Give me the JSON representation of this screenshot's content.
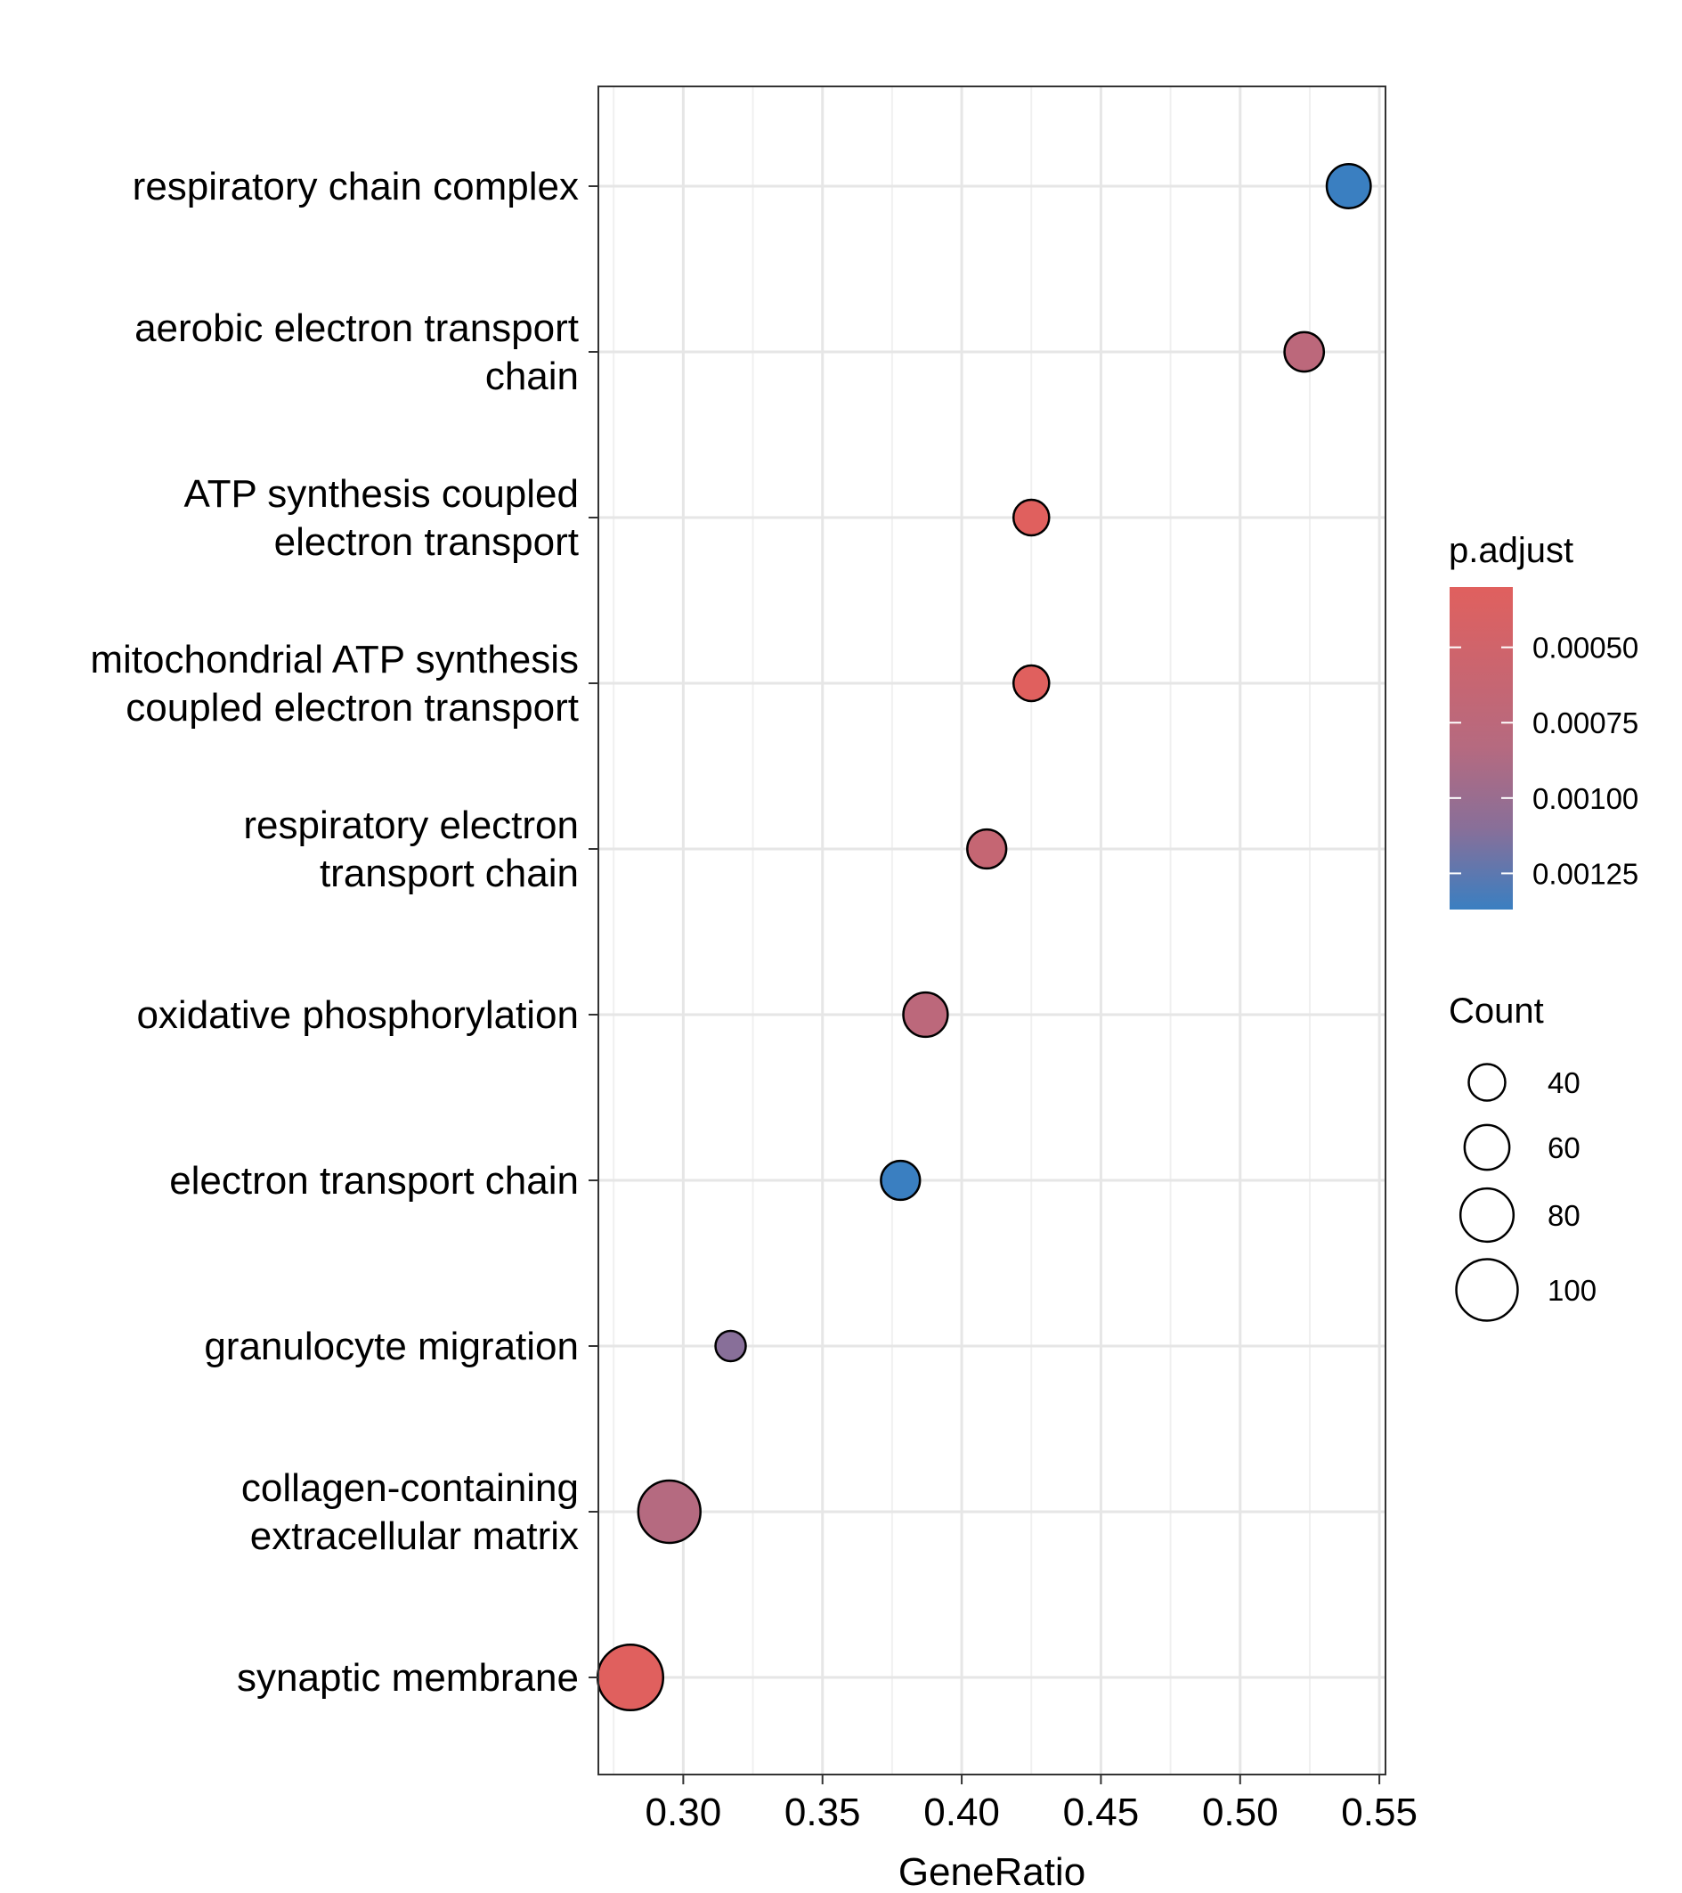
{
  "chart_data": {
    "type": "scatter",
    "title": "",
    "xlabel": "GeneRatio",
    "ylabel": "",
    "xlim": [
      0.2695,
      0.5522
    ],
    "x_ticks": [
      0.3,
      0.35,
      0.4,
      0.45,
      0.5,
      0.55
    ],
    "x_tick_labels": [
      "0.30",
      "0.35",
      "0.40",
      "0.45",
      "0.50",
      "0.55"
    ],
    "grid": true,
    "legend_position": "right",
    "categories": [
      "respiratory chain complex",
      "aerobic electron transport chain",
      "ATP synthesis coupled electron transport",
      "mitochondrial ATP synthesis coupled electron transport",
      "respiratory electron transport chain",
      "oxidative phosphorylation",
      "electron transport chain",
      "granulocyte migration",
      "collagen-containing extracellular matrix",
      "synaptic membrane"
    ],
    "category_label_lines": [
      [
        "respiratory chain complex"
      ],
      [
        "aerobic electron transport",
        "chain"
      ],
      [
        "ATP synthesis coupled",
        "electron transport"
      ],
      [
        "mitochondrial ATP synthesis",
        "coupled electron transport"
      ],
      [
        "respiratory electron",
        "transport chain"
      ],
      [
        "oxidative phosphorylation"
      ],
      [
        "electron transport chain"
      ],
      [
        "granulocyte migration"
      ],
      [
        "collagen-containing",
        "extracellular matrix"
      ],
      [
        "synaptic membrane"
      ]
    ],
    "points": [
      {
        "term": "respiratory chain complex",
        "gene_ratio": 0.539,
        "count": 58,
        "p_adjust": 0.00137
      },
      {
        "term": "aerobic electron transport chain",
        "gene_ratio": 0.523,
        "count": 47,
        "p_adjust": 0.00068
      },
      {
        "term": "ATP synthesis coupled electron transport",
        "gene_ratio": 0.425,
        "count": 38,
        "p_adjust": 0.0003
      },
      {
        "term": "mitochondrial ATP synthesis coupled electron transport",
        "gene_ratio": 0.425,
        "count": 38,
        "p_adjust": 0.0003
      },
      {
        "term": "respiratory electron transport chain",
        "gene_ratio": 0.409,
        "count": 46,
        "p_adjust": 0.00058
      },
      {
        "term": "oxidative phosphorylation",
        "gene_ratio": 0.387,
        "count": 59,
        "p_adjust": 0.00068
      },
      {
        "term": "electron transport chain",
        "gene_ratio": 0.378,
        "count": 46,
        "p_adjust": 0.00137
      },
      {
        "term": "granulocyte migration",
        "gene_ratio": 0.317,
        "count": 25,
        "p_adjust": 0.00105
      },
      {
        "term": "collagen-containing extracellular matrix",
        "gene_ratio": 0.295,
        "count": 102,
        "p_adjust": 0.00075
      },
      {
        "term": "synaptic membrane",
        "gene_ratio": 0.281,
        "count": 110,
        "p_adjust": 0.0003
      }
    ],
    "color_legend": {
      "title": "p.adjust",
      "range": [
        0.0003,
        0.00137
      ],
      "low_color": "#e0605e",
      "mid_color": "#886f99",
      "high_color": "#3a7fc1",
      "ticks": [
        0.0005,
        0.00075,
        0.001,
        0.00125
      ],
      "tick_labels": [
        "0.00050",
        "0.00075",
        "0.00100",
        "0.00125"
      ]
    },
    "size_legend": {
      "title": "Count",
      "values": [
        40,
        60,
        80,
        100
      ],
      "labels": [
        "40",
        "60",
        "80",
        "100"
      ]
    }
  }
}
